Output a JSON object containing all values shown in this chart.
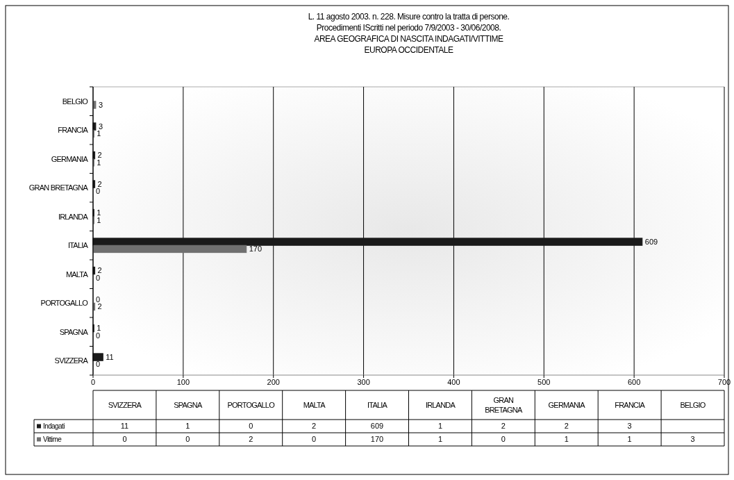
{
  "chart_data": {
    "type": "bar",
    "orientation": "horizontal",
    "title": "L. 11 agosto 2003. n. 228. Misure contro la tratta di persone.\nProcedimenti IScritti nel periodo 7/9/2003 - 30/06/2008.\nAREA GEOGRAFICA DI NASCITA INDAGATI/VITTIME\nEUROPA OCCIDENTALE",
    "categories": [
      "BELGIO",
      "FRANCIA",
      "GERMANIA",
      "GRAN BRETAGNA",
      "IRLANDA",
      "ITALIA",
      "MALTA",
      "PORTOGALLO",
      "SPAGNA",
      "SVIZZERA"
    ],
    "series": [
      {
        "name": "Indagati",
        "color": "#1a1a1a",
        "values": [
          null,
          3,
          2,
          2,
          1,
          609,
          2,
          0,
          1,
          11
        ],
        "value_labels": [
          null,
          "3",
          "2",
          "2",
          "1",
          "609",
          "2",
          "0",
          "1",
          "11"
        ]
      },
      {
        "name": "Vittime",
        "color": "#707070",
        "values": [
          3,
          1,
          1,
          0,
          1,
          170,
          0,
          2,
          0,
          0
        ],
        "value_labels": [
          "3",
          "1",
          "1",
          "0",
          "1",
          "170",
          "0",
          "2",
          "0",
          "0"
        ]
      }
    ],
    "xlim": [
      0,
      700
    ],
    "xticks": [
      0,
      100,
      200,
      300,
      400,
      500,
      600,
      700
    ],
    "grid": "x",
    "legend": "bottom"
  }
}
